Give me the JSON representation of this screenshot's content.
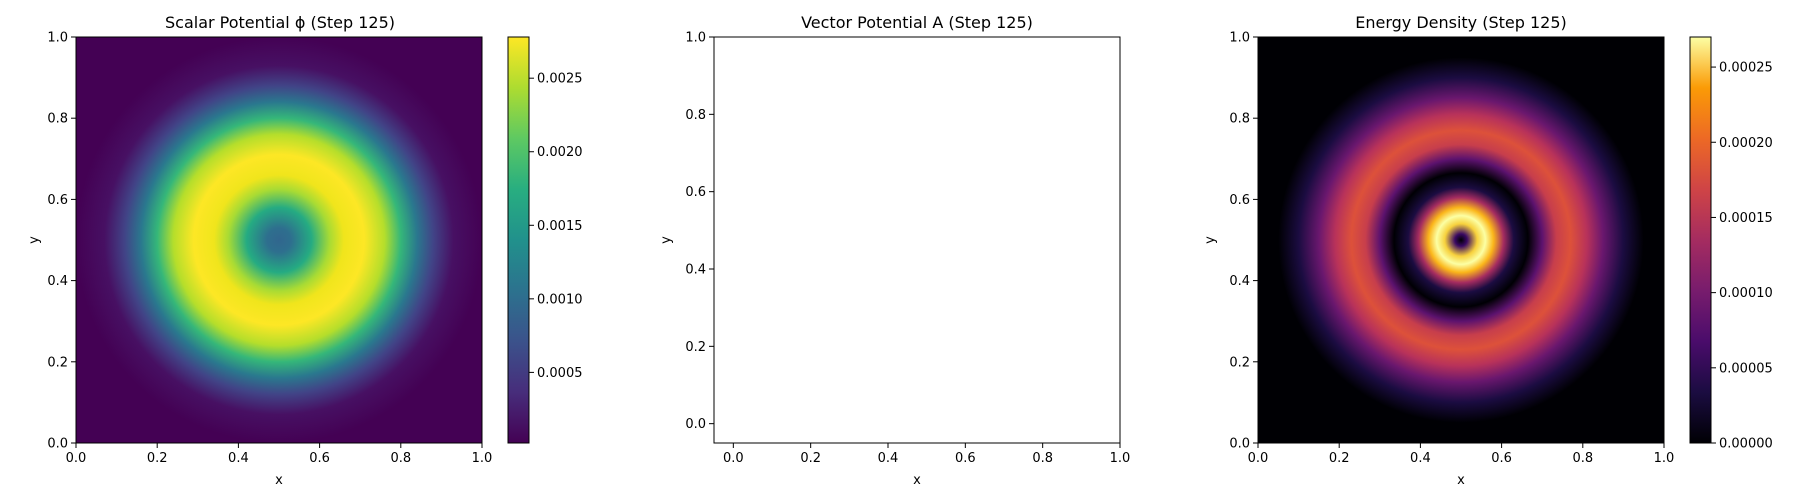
{
  "chart_data": [
    {
      "type": "heatmap",
      "title": "Scalar Potential ϕ (Step 125)",
      "xlabel": "x",
      "ylabel": "y",
      "xlim": [
        0,
        1
      ],
      "ylim": [
        0,
        1
      ],
      "xticks": [
        "0.0",
        "0.2",
        "0.4",
        "0.6",
        "0.8",
        "1.0"
      ],
      "yticks": [
        "0.0",
        "0.2",
        "0.4",
        "0.6",
        "0.8",
        "1.0"
      ],
      "colormap": "viridis",
      "colorbar": {
        "min": 2e-05,
        "max": 0.00278,
        "ticks": [
          0.0005,
          0.001,
          0.0015,
          0.002,
          0.0025
        ],
        "tick_labels": [
          "0.0005",
          "0.0010",
          "0.0015",
          "0.0020",
          "0.0025"
        ]
      },
      "field": {
        "shape": "ring",
        "center": [
          0.5,
          0.5
        ],
        "ring_radius": 0.2,
        "ring_width": 0.085,
        "peak_value": 0.00275,
        "background_value": 2e-05,
        "center_value": 0.00085
      }
    },
    {
      "type": "scatter",
      "title": "Vector Potential A (Step 125)",
      "xlabel": "x",
      "ylabel": "y",
      "xlim": [
        -0.05,
        1.0
      ],
      "ylim": [
        -0.05,
        1.0
      ],
      "xticks": [
        "0.0",
        "0.2",
        "0.4",
        "0.6",
        "0.8",
        "1.0"
      ],
      "yticks": [
        "0.0",
        "0.2",
        "0.4",
        "0.6",
        "0.8",
        "1.0"
      ],
      "points": []
    },
    {
      "type": "heatmap",
      "title": "Energy Density (Step 125)",
      "xlabel": "x",
      "ylabel": "y",
      "xlim": [
        0,
        1
      ],
      "ylim": [
        0,
        1
      ],
      "xticks": [
        "0.0",
        "0.2",
        "0.4",
        "0.6",
        "0.8",
        "1.0"
      ],
      "yticks": [
        "0.0",
        "0.2",
        "0.4",
        "0.6",
        "0.8",
        "1.0"
      ],
      "colormap": "inferno",
      "colorbar": {
        "min": 0,
        "max": 0.00027,
        "ticks": [
          0,
          5e-05,
          0.0001,
          0.00015,
          0.0002,
          0.00025
        ],
        "tick_labels": [
          "0.00000",
          "0.00005",
          "0.00010",
          "0.00015",
          "0.00020",
          "0.00025"
        ]
      },
      "field": {
        "shape": "double-ring",
        "center": [
          0.5,
          0.5
        ],
        "inner_ring_radius": 0.065,
        "inner_ring_peak": 0.00027,
        "outer_ring_radius": 0.27,
        "outer_ring_peak": 0.000155,
        "dark_gap_radius": 0.16
      }
    }
  ]
}
